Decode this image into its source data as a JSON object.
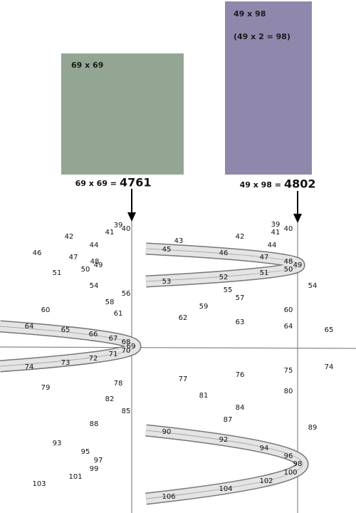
{
  "boxes": [
    {
      "label": "69 x 69"
    },
    {
      "label": "49 x 98",
      "note": "(49 x 2 = 98)"
    }
  ],
  "equations": [
    {
      "expression": "69 x 69 =",
      "result": "4761"
    },
    {
      "expression": "49 x 98 =",
      "result": "4802"
    }
  ],
  "left_numbers": [
    39,
    40,
    41,
    42,
    44,
    46,
    47,
    48,
    49,
    50,
    51,
    54,
    56,
    58,
    60,
    61,
    64,
    65,
    66,
    67,
    68,
    69,
    70,
    71,
    72,
    73,
    74,
    78,
    79,
    82,
    85,
    88,
    93,
    95,
    97,
    99,
    101,
    103
  ],
  "right_numbers": [
    39,
    40,
    41,
    42,
    43,
    44,
    45,
    46,
    47,
    48,
    49,
    50,
    51,
    52,
    53,
    54,
    55,
    57,
    59,
    60,
    62,
    63,
    64,
    65,
    74,
    75,
    76,
    77,
    80,
    81,
    84,
    87,
    89,
    90,
    92,
    94,
    96,
    98,
    100,
    102,
    104,
    106
  ]
}
